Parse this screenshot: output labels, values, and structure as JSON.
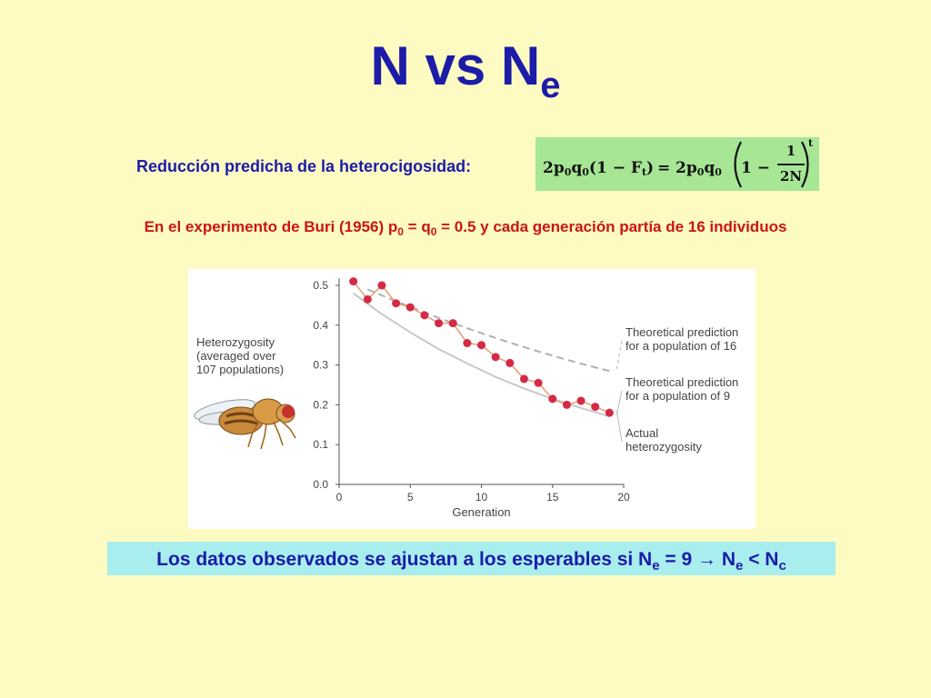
{
  "title": {
    "main": "N vs N",
    "sub": "e"
  },
  "subtitle": "Reducción predicha de la heterocigosidad:",
  "formula": {
    "lhs_2": "2p",
    "lhs_p_sub": "0",
    "lhs_q": "q",
    "lhs_q_sub": "0",
    "lhs_paren": "(1 − F",
    "lhs_f_sub": "t",
    "lhs_close": ")",
    "equals": "=",
    "rhs_2": "2p",
    "rhs_p_sub": "0",
    "rhs_q": "q",
    "rhs_q_sub": "0",
    "rhs_one_minus": "1 −",
    "frac_num": "1",
    "frac_den": "2N",
    "exponent": "t"
  },
  "experiment": {
    "part1": "En el experimento de Buri (1956) p",
    "sub1": "0",
    "part2": " = q",
    "sub2": "0",
    "part3": " = 0.5 y cada generación partía de 16 individuos"
  },
  "chart_data": {
    "type": "line",
    "title": "",
    "xlabel": "Generation",
    "ylabel": "Heterozygosity (averaged over 107 populations)",
    "xlim": [
      0,
      20
    ],
    "ylim": [
      0,
      0.5
    ],
    "xticks": [
      0,
      5,
      10,
      15,
      20
    ],
    "yticks": [
      0.0,
      0.1,
      0.2,
      0.3,
      0.4,
      0.5
    ],
    "x_tick_labels": [
      "0",
      "5",
      "10",
      "15",
      "20"
    ],
    "y_tick_labels": [
      "0.0",
      "0.1",
      "0.2",
      "0.3",
      "0.4",
      "0.5"
    ],
    "y_label_lines": [
      "Heterozygosity",
      "(averaged over",
      "107 populations)"
    ],
    "series": [
      {
        "name": "Actual heterozygosity",
        "name_lines": [
          "Actual",
          "heterozygosity"
        ],
        "style": "line+markers",
        "color": "#e8a07a",
        "marker_color": "#d42a44",
        "x": [
          1,
          2,
          3,
          4,
          5,
          6,
          7,
          8,
          9,
          10,
          11,
          12,
          13,
          14,
          15,
          16,
          17,
          18,
          19
        ],
        "y": [
          0.51,
          0.465,
          0.5,
          0.455,
          0.445,
          0.425,
          0.405,
          0.405,
          0.355,
          0.35,
          0.32,
          0.305,
          0.265,
          0.255,
          0.215,
          0.2,
          0.21,
          0.195,
          0.18
        ]
      },
      {
        "name": "Theoretical prediction for a population of 16",
        "name_lines": [
          "Theoretical prediction",
          "for a population of 16"
        ],
        "style": "dashed",
        "color": "#b0b0b0",
        "x": [
          2,
          4,
          6,
          8,
          10,
          12,
          14,
          16,
          18,
          19
        ],
        "y": [
          0.49,
          0.46,
          0.432,
          0.405,
          0.38,
          0.356,
          0.334,
          0.313,
          0.294,
          0.285
        ]
      },
      {
        "name": "Theoretical prediction for a population of 9",
        "name_lines": [
          "Theoretical prediction",
          "for a population of 9"
        ],
        "style": "solid",
        "color": "#c8c8c8",
        "x": [
          1,
          3,
          5,
          7,
          9,
          11,
          13,
          15,
          17,
          19
        ],
        "y": [
          0.48,
          0.428,
          0.382,
          0.34,
          0.304,
          0.27,
          0.241,
          0.215,
          0.192,
          0.171
        ]
      }
    ]
  },
  "conclusion": {
    "part1": "Los datos observados se ajustan a los esperables si N",
    "sub1": "e",
    "part2": " = 9 → N",
    "sub2": "e",
    "part3": " < N",
    "sub3": "c"
  }
}
